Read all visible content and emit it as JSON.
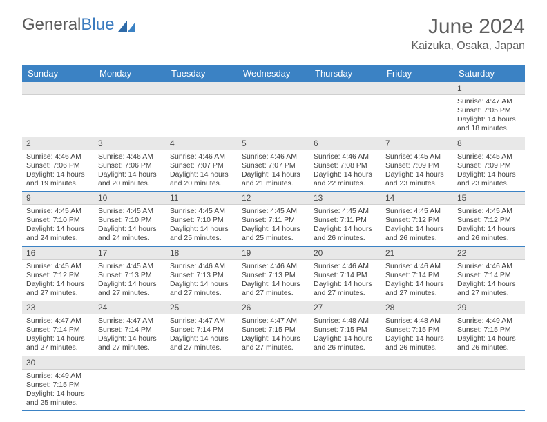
{
  "brand": {
    "word1": "General",
    "word2": "Blue"
  },
  "title": "June 2024",
  "location": "Kaizuka, Osaka, Japan",
  "colors": {
    "header_bg": "#3b82c4",
    "header_text": "#ffffff",
    "daynum_bg": "#e8e8e8",
    "row_divider": "#3b82c4",
    "text": "#404040",
    "brand_blue": "#3b7bbf",
    "brand_gray": "#5a5a5a"
  },
  "typography": {
    "title_fontsize": 30,
    "location_fontsize": 16,
    "dayhead_fontsize": 13,
    "daynum_fontsize": 12,
    "info_fontsize": 10.5
  },
  "day_headers": [
    "Sunday",
    "Monday",
    "Tuesday",
    "Wednesday",
    "Thursday",
    "Friday",
    "Saturday"
  ],
  "weeks": [
    {
      "nums": [
        "",
        "",
        "",
        "",
        "",
        "",
        "1"
      ],
      "cells": [
        null,
        null,
        null,
        null,
        null,
        null,
        {
          "sunrise": "4:47 AM",
          "sunset": "7:05 PM",
          "daylight": "14 hours and 18 minutes."
        }
      ]
    },
    {
      "nums": [
        "2",
        "3",
        "4",
        "5",
        "6",
        "7",
        "8"
      ],
      "cells": [
        {
          "sunrise": "4:46 AM",
          "sunset": "7:06 PM",
          "daylight": "14 hours and 19 minutes."
        },
        {
          "sunrise": "4:46 AM",
          "sunset": "7:06 PM",
          "daylight": "14 hours and 20 minutes."
        },
        {
          "sunrise": "4:46 AM",
          "sunset": "7:07 PM",
          "daylight": "14 hours and 20 minutes."
        },
        {
          "sunrise": "4:46 AM",
          "sunset": "7:07 PM",
          "daylight": "14 hours and 21 minutes."
        },
        {
          "sunrise": "4:46 AM",
          "sunset": "7:08 PM",
          "daylight": "14 hours and 22 minutes."
        },
        {
          "sunrise": "4:45 AM",
          "sunset": "7:09 PM",
          "daylight": "14 hours and 23 minutes."
        },
        {
          "sunrise": "4:45 AM",
          "sunset": "7:09 PM",
          "daylight": "14 hours and 23 minutes."
        }
      ]
    },
    {
      "nums": [
        "9",
        "10",
        "11",
        "12",
        "13",
        "14",
        "15"
      ],
      "cells": [
        {
          "sunrise": "4:45 AM",
          "sunset": "7:10 PM",
          "daylight": "14 hours and 24 minutes."
        },
        {
          "sunrise": "4:45 AM",
          "sunset": "7:10 PM",
          "daylight": "14 hours and 24 minutes."
        },
        {
          "sunrise": "4:45 AM",
          "sunset": "7:10 PM",
          "daylight": "14 hours and 25 minutes."
        },
        {
          "sunrise": "4:45 AM",
          "sunset": "7:11 PM",
          "daylight": "14 hours and 25 minutes."
        },
        {
          "sunrise": "4:45 AM",
          "sunset": "7:11 PM",
          "daylight": "14 hours and 26 minutes."
        },
        {
          "sunrise": "4:45 AM",
          "sunset": "7:12 PM",
          "daylight": "14 hours and 26 minutes."
        },
        {
          "sunrise": "4:45 AM",
          "sunset": "7:12 PM",
          "daylight": "14 hours and 26 minutes."
        }
      ]
    },
    {
      "nums": [
        "16",
        "17",
        "18",
        "19",
        "20",
        "21",
        "22"
      ],
      "cells": [
        {
          "sunrise": "4:45 AM",
          "sunset": "7:12 PM",
          "daylight": "14 hours and 27 minutes."
        },
        {
          "sunrise": "4:45 AM",
          "sunset": "7:13 PM",
          "daylight": "14 hours and 27 minutes."
        },
        {
          "sunrise": "4:46 AM",
          "sunset": "7:13 PM",
          "daylight": "14 hours and 27 minutes."
        },
        {
          "sunrise": "4:46 AM",
          "sunset": "7:13 PM",
          "daylight": "14 hours and 27 minutes."
        },
        {
          "sunrise": "4:46 AM",
          "sunset": "7:14 PM",
          "daylight": "14 hours and 27 minutes."
        },
        {
          "sunrise": "4:46 AM",
          "sunset": "7:14 PM",
          "daylight": "14 hours and 27 minutes."
        },
        {
          "sunrise": "4:46 AM",
          "sunset": "7:14 PM",
          "daylight": "14 hours and 27 minutes."
        }
      ]
    },
    {
      "nums": [
        "23",
        "24",
        "25",
        "26",
        "27",
        "28",
        "29"
      ],
      "cells": [
        {
          "sunrise": "4:47 AM",
          "sunset": "7:14 PM",
          "daylight": "14 hours and 27 minutes."
        },
        {
          "sunrise": "4:47 AM",
          "sunset": "7:14 PM",
          "daylight": "14 hours and 27 minutes."
        },
        {
          "sunrise": "4:47 AM",
          "sunset": "7:14 PM",
          "daylight": "14 hours and 27 minutes."
        },
        {
          "sunrise": "4:47 AM",
          "sunset": "7:15 PM",
          "daylight": "14 hours and 27 minutes."
        },
        {
          "sunrise": "4:48 AM",
          "sunset": "7:15 PM",
          "daylight": "14 hours and 26 minutes."
        },
        {
          "sunrise": "4:48 AM",
          "sunset": "7:15 PM",
          "daylight": "14 hours and 26 minutes."
        },
        {
          "sunrise": "4:49 AM",
          "sunset": "7:15 PM",
          "daylight": "14 hours and 26 minutes."
        }
      ]
    },
    {
      "nums": [
        "30",
        "",
        "",
        "",
        "",
        "",
        ""
      ],
      "cells": [
        {
          "sunrise": "4:49 AM",
          "sunset": "7:15 PM",
          "daylight": "14 hours and 25 minutes."
        },
        null,
        null,
        null,
        null,
        null,
        null
      ]
    }
  ],
  "labels": {
    "sunrise": "Sunrise:",
    "sunset": "Sunset:",
    "daylight": "Daylight:"
  }
}
